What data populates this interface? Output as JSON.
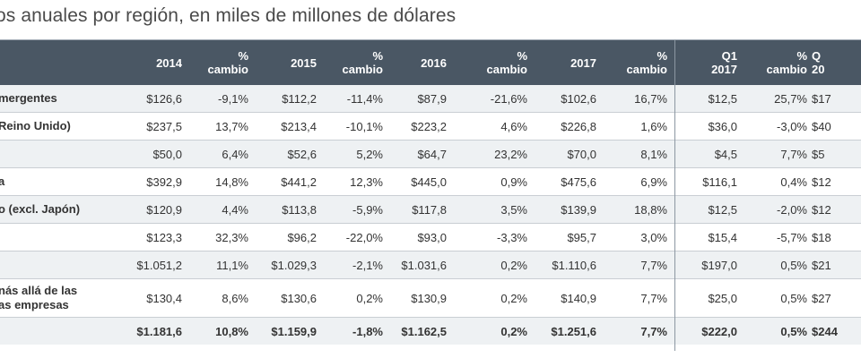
{
  "title": "os anuales por región, en miles de millones de dólares",
  "header": {
    "cols": [
      {
        "l1": "",
        "l2": "2014"
      },
      {
        "l1": "%",
        "l2": "cambio"
      },
      {
        "l1": "",
        "l2": "2015"
      },
      {
        "l1": "%",
        "l2": "cambio"
      },
      {
        "l1": "",
        "l2": "2016"
      },
      {
        "l1": "%",
        "l2": "cambio"
      },
      {
        "l1": "",
        "l2": "2017"
      },
      {
        "l1": "%",
        "l2": "cambio"
      },
      {
        "l1": "Q1",
        "l2": "2017"
      },
      {
        "l1": "%",
        "l2": "cambio"
      },
      {
        "l1": "Q",
        "l2": "20"
      }
    ]
  },
  "rows": [
    {
      "label1": "mergentes",
      "label2": "",
      "cells": [
        "$126,6",
        "-9,1%",
        "$112,2",
        "-11,4%",
        "$87,9",
        "-21,6%",
        "$102,6",
        "16,7%",
        "$12,5",
        "25,7%",
        "$17"
      ]
    },
    {
      "label1": "Reino Unido)",
      "label2": "",
      "cells": [
        "$237,5",
        "13,7%",
        "$213,4",
        "-10,1%",
        "$223,2",
        "4,6%",
        "$226,8",
        "1,6%",
        "$36,0",
        "-3,0%",
        "$40"
      ]
    },
    {
      "label1": "",
      "label2": "",
      "cells": [
        "$50,0",
        "6,4%",
        "$52,6",
        "5,2%",
        "$64,7",
        "23,2%",
        "$70,0",
        "8,1%",
        "$4,5",
        "7,7%",
        "$5"
      ]
    },
    {
      "label1": "a",
      "label2": "",
      "cells": [
        "$392,9",
        "14,8%",
        "$441,2",
        "12,3%",
        "$445,0",
        "0,9%",
        "$475,6",
        "6,9%",
        "$116,1",
        "0,4%",
        "$12"
      ]
    },
    {
      "label1": "o (excl. Japón)",
      "label2": "",
      "cells": [
        "$120,9",
        "4,4%",
        "$113,8",
        "-5,9%",
        "$117,8",
        "3,5%",
        "$139,9",
        "18,8%",
        "$12,5",
        "-2,0%",
        "$12"
      ]
    },
    {
      "label1": "",
      "label2": "",
      "cells": [
        "$123,3",
        "32,3%",
        "$96,2",
        "-22,0%",
        "$93,0",
        "-3,3%",
        "$95,7",
        "3,0%",
        "$15,4",
        "-5,7%",
        "$18"
      ]
    },
    {
      "label1": "",
      "label2": "",
      "cells": [
        "$1.051,2",
        "11,1%",
        "$1.029,3",
        "-2,1%",
        "$1.031,6",
        "0,2%",
        "$1.110,6",
        "7,7%",
        "$197,0",
        "0,5%",
        "$21"
      ]
    },
    {
      "label1": "nás allá de las",
      "label2": "as empresas",
      "cells": [
        "$130,4",
        "8,6%",
        "$130,6",
        "0,2%",
        "$130,9",
        "0,2%",
        "$140,9",
        "7,7%",
        "$25,0",
        "0,5%",
        "$27"
      ]
    }
  ],
  "total": {
    "cells": [
      "$1.181,6",
      "10,8%",
      "$1.159,9",
      "-1,8%",
      "$1.162,5",
      "0,2%",
      "$1.251,6",
      "7,7%",
      "$222,0",
      "0,5%",
      "$244"
    ]
  }
}
